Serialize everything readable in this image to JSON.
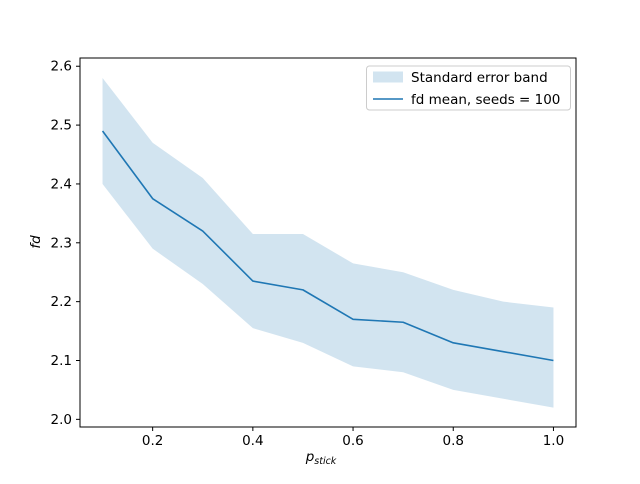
{
  "figure": {
    "kind": "matplotlib-line-chart",
    "background": "#ffffff"
  },
  "chart_data": {
    "type": "line",
    "title": "",
    "x": [
      0.1,
      0.2,
      0.3,
      0.4,
      0.5,
      0.6,
      0.7,
      0.8,
      0.9,
      1.0
    ],
    "series": [
      {
        "name": "fd mean, seeds = 100",
        "values": [
          2.49,
          2.375,
          2.32,
          2.235,
          2.22,
          2.17,
          2.165,
          2.13,
          2.115,
          2.1
        ]
      }
    ],
    "band": {
      "name": "Standard error band",
      "upper": [
        2.58,
        2.47,
        2.41,
        2.315,
        2.315,
        2.265,
        2.25,
        2.22,
        2.2,
        2.19
      ],
      "lower": [
        2.4,
        2.29,
        2.23,
        2.155,
        2.13,
        2.09,
        2.08,
        2.05,
        2.035,
        2.02
      ]
    },
    "xlabel_base": "p",
    "xlabel_sub": "stick",
    "ylabel": "fd",
    "xlim": [
      0.055,
      1.045
    ],
    "ylim": [
      1.987,
      2.614
    ],
    "xticks": {
      "values": [
        0.2,
        0.4,
        0.6,
        0.8,
        1.0
      ],
      "labels": [
        "0.2",
        "0.4",
        "0.6",
        "0.8",
        "1.0"
      ]
    },
    "yticks": {
      "values": [
        2.0,
        2.1,
        2.2,
        2.3,
        2.4,
        2.5,
        2.6
      ],
      "labels": [
        "2.0",
        "2.1",
        "2.2",
        "2.3",
        "2.4",
        "2.5",
        "2.6"
      ]
    },
    "grid": false,
    "legend": {
      "position": "upper right",
      "entries": [
        {
          "swatch": "band",
          "label": "Standard error band"
        },
        {
          "swatch": "line",
          "label": "fd mean, seeds = 100"
        }
      ]
    },
    "colors": {
      "line": "#1f77b4",
      "band_fill": "rgba(31,119,180,0.2)",
      "band_fill_hex_on_white": "#d2e4f0",
      "spine": "#000000",
      "legend_border": "#cccccc",
      "legend_bg": "#ffffff",
      "text": "#000000"
    }
  }
}
